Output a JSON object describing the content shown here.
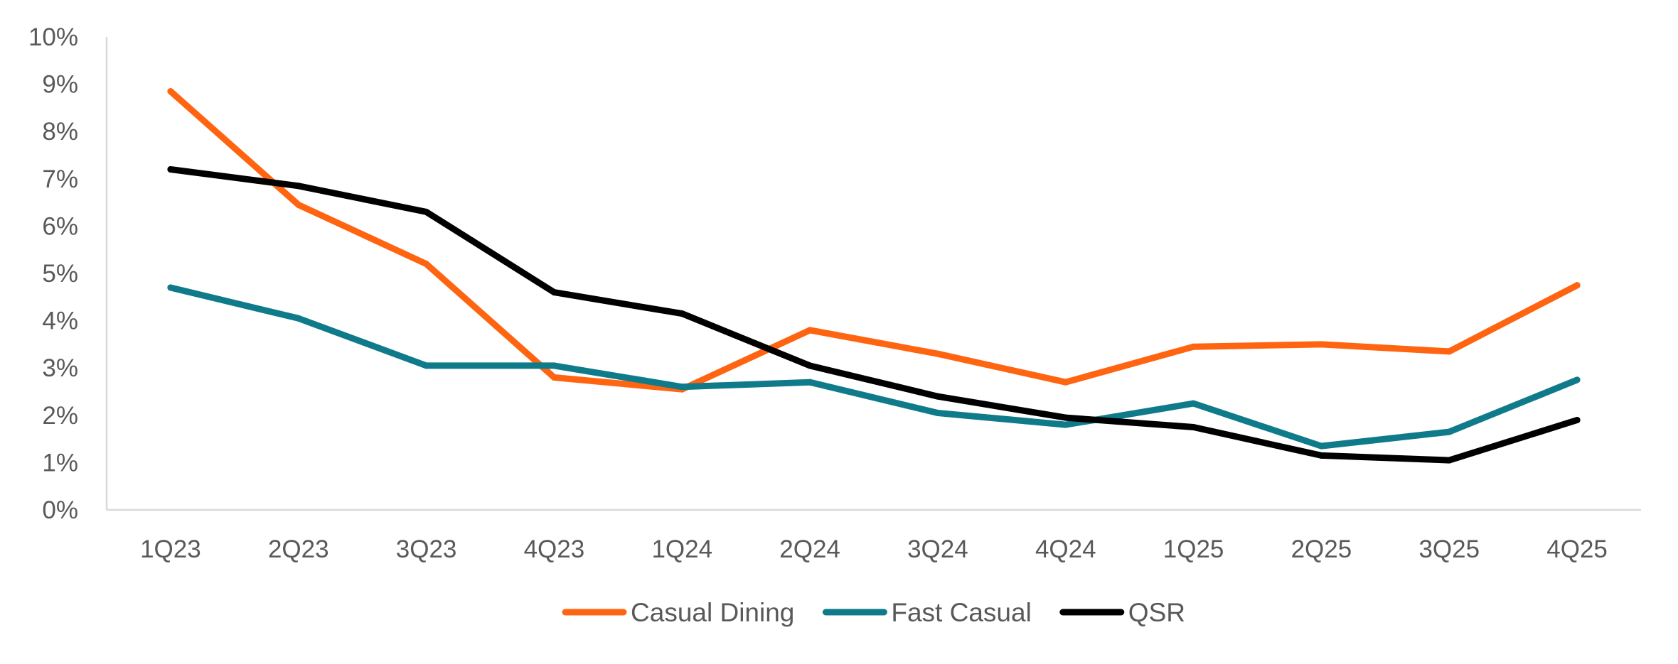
{
  "chart_data": {
    "type": "line",
    "title": "",
    "xlabel": "",
    "ylabel": "",
    "ylim": [
      0,
      10
    ],
    "y_ticks": [
      "0%",
      "1%",
      "2%",
      "3%",
      "4%",
      "5%",
      "6%",
      "7%",
      "8%",
      "9%",
      "10%"
    ],
    "grid": false,
    "legend_position": "bottom",
    "categories": [
      "1Q23",
      "2Q23",
      "3Q23",
      "4Q23",
      "1Q24",
      "2Q24",
      "3Q24",
      "4Q24",
      "1Q25",
      "2Q25",
      "3Q25",
      "4Q25"
    ],
    "series": [
      {
        "name": "Casual Dining",
        "color": "#ff6411",
        "values": [
          8.85,
          6.45,
          5.2,
          2.8,
          2.55,
          3.8,
          3.3,
          2.7,
          3.45,
          3.5,
          3.35,
          4.75
        ]
      },
      {
        "name": "Fast Casual",
        "color": "#0f7b8a",
        "values": [
          4.7,
          4.05,
          3.05,
          3.05,
          2.6,
          2.7,
          2.05,
          1.8,
          2.25,
          1.35,
          1.65,
          2.75
        ]
      },
      {
        "name": "QSR",
        "color": "#000000",
        "values": [
          7.2,
          6.85,
          6.3,
          4.6,
          4.15,
          3.05,
          2.4,
          1.95,
          1.75,
          1.15,
          1.05,
          1.9
        ]
      }
    ]
  }
}
